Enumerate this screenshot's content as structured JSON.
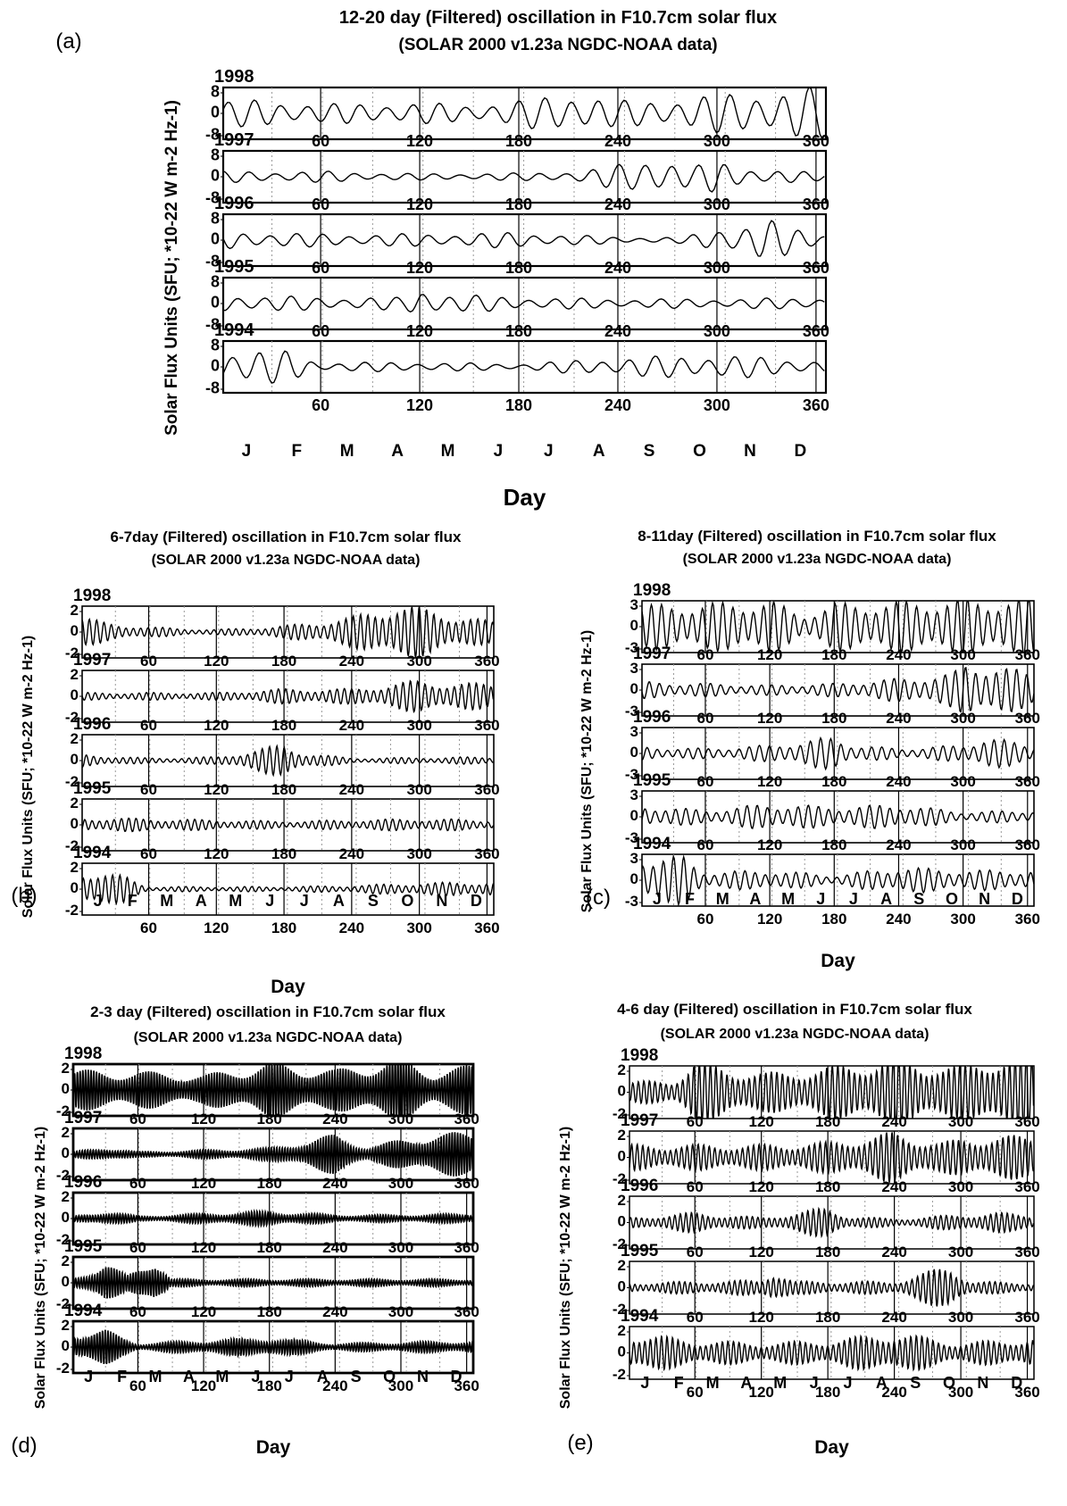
{
  "chart_data": [
    {
      "panel_letter": "(a)",
      "type": "line",
      "title": "12-20 day (Filtered) oscillation in F10.7cm solar flux",
      "subtitle": "(SOLAR 2000 v1.23a NGDC-NOAA data)",
      "ylabel": "Solar Flux Units (SFU; *10-22 W m-2 Hz-1)",
      "xlabel": "Day",
      "ylim": [
        -8,
        8
      ],
      "yticks": [
        "8",
        "0",
        "-8"
      ],
      "xlim": [
        1,
        366
      ],
      "xticks": [
        "60",
        "120",
        "180",
        "240",
        "300",
        "360"
      ],
      "months": [
        "J",
        "F",
        "M",
        "A",
        "M",
        "J",
        "J",
        "A",
        "S",
        "O",
        "N",
        "D"
      ],
      "series": [
        {
          "name": "1998",
          "period_days": 16,
          "envelope": [
            [
              1,
              4
            ],
            [
              30,
              4.5
            ],
            [
              60,
              3
            ],
            [
              100,
              3.5
            ],
            [
              150,
              3
            ],
            [
              180,
              4
            ],
            [
              210,
              7
            ],
            [
              240,
              4
            ],
            [
              280,
              5
            ],
            [
              320,
              7
            ],
            [
              366,
              8.5
            ]
          ]
        },
        {
          "name": "1997",
          "period_days": 16,
          "envelope": [
            [
              1,
              1.8
            ],
            [
              60,
              1.8
            ],
            [
              120,
              1
            ],
            [
              180,
              1.2
            ],
            [
              220,
              2
            ],
            [
              240,
              4
            ],
            [
              260,
              7
            ],
            [
              285,
              3
            ],
            [
              300,
              5.5
            ],
            [
              330,
              2
            ],
            [
              366,
              1.5
            ]
          ]
        },
        {
          "name": "1996",
          "period_days": 16,
          "envelope": [
            [
              1,
              3
            ],
            [
              60,
              2
            ],
            [
              120,
              2
            ],
            [
              180,
              2.5
            ],
            [
              240,
              1
            ],
            [
              280,
              1
            ],
            [
              310,
              5
            ],
            [
              330,
              7
            ],
            [
              345,
              4
            ],
            [
              366,
              2
            ]
          ]
        },
        {
          "name": "1995",
          "period_days": 16,
          "envelope": [
            [
              1,
              3
            ],
            [
              60,
              2
            ],
            [
              110,
              2
            ],
            [
              120,
              5
            ],
            [
              140,
              3
            ],
            [
              180,
              2
            ],
            [
              240,
              1.5
            ],
            [
              300,
              1.5
            ],
            [
              366,
              2
            ]
          ]
        },
        {
          "name": "1994",
          "period_days": 16,
          "envelope": [
            [
              1,
              6
            ],
            [
              40,
              5
            ],
            [
              60,
              1.5
            ],
            [
              120,
              1.5
            ],
            [
              180,
              1
            ],
            [
              240,
              3
            ],
            [
              300,
              4
            ],
            [
              330,
              3
            ],
            [
              366,
              2
            ]
          ]
        }
      ]
    },
    {
      "panel_letter": "(b)",
      "type": "line",
      "title": "6-7day (Filtered) oscillation in F10.7cm solar flux",
      "subtitle": "(SOLAR 2000 v1.23a NGDC-NOAA data)",
      "ylabel": "Solar Flux Units (SFU; *10-22 W m-2 Hz-1)",
      "xlabel": "Day",
      "ylim": [
        -2,
        2
      ],
      "yticks": [
        "2",
        "0",
        "-2"
      ],
      "xlim": [
        1,
        366
      ],
      "xticks": [
        "60",
        "120",
        "180",
        "240",
        "300",
        "360"
      ],
      "months": [
        "J",
        "F",
        "M",
        "A",
        "M",
        "J",
        "J",
        "A",
        "S",
        "O",
        "N",
        "D"
      ],
      "series": [
        {
          "name": "1998",
          "period_days": 6.5,
          "envelope": [
            [
              1,
              1.2
            ],
            [
              20,
              0.8
            ],
            [
              60,
              0.4
            ],
            [
              120,
              0.2
            ],
            [
              180,
              0.5
            ],
            [
              240,
              1.2
            ],
            [
              280,
              2.3
            ],
            [
              310,
              1.8
            ],
            [
              366,
              0.8
            ]
          ]
        },
        {
          "name": "1997",
          "period_days": 6.5,
          "envelope": [
            [
              1,
              0.3
            ],
            [
              120,
              0.3
            ],
            [
              180,
              0.6
            ],
            [
              240,
              0.6
            ],
            [
              300,
              1.3
            ],
            [
              330,
              1.1
            ],
            [
              366,
              1
            ]
          ]
        },
        {
          "name": "1996",
          "period_days": 6.5,
          "envelope": [
            [
              1,
              0.5
            ],
            [
              60,
              0.2
            ],
            [
              120,
              0.3
            ],
            [
              150,
              0.8
            ],
            [
              180,
              1.3
            ],
            [
              200,
              0.6
            ],
            [
              240,
              0.2
            ],
            [
              366,
              0.3
            ]
          ]
        },
        {
          "name": "1995",
          "period_days": 6.5,
          "envelope": [
            [
              1,
              0.6
            ],
            [
              120,
              0.4
            ],
            [
              180,
              0.3
            ],
            [
              240,
              0.4
            ],
            [
              300,
              0.5
            ],
            [
              366,
              0.4
            ]
          ]
        },
        {
          "name": "1994",
          "period_days": 6.5,
          "envelope": [
            [
              1,
              1.6
            ],
            [
              40,
              1
            ],
            [
              60,
              0.2
            ],
            [
              180,
              0.2
            ],
            [
              240,
              0.3
            ],
            [
              300,
              0.5
            ],
            [
              366,
              0.6
            ]
          ]
        }
      ]
    },
    {
      "panel_letter": "(c)",
      "type": "line",
      "title": "8-11day (Filtered) oscillation in F10.7cm solar flux",
      "subtitle": "(SOLAR 2000 v1.23a NGDC-NOAA data)",
      "ylabel": "Solar Flux Units (SFU; *10-22 W m-2 Hz-1)",
      "xlabel": "Day",
      "ylim": [
        -3,
        3
      ],
      "yticks": [
        "3",
        "0",
        "-3"
      ],
      "xlim": [
        1,
        366
      ],
      "xticks": [
        "60",
        "120",
        "180",
        "240",
        "300",
        "360"
      ],
      "months": [
        "J",
        "F",
        "M",
        "A",
        "M",
        "J",
        "J",
        "A",
        "S",
        "O",
        "N",
        "D"
      ],
      "series": [
        {
          "name": "1998",
          "period_days": 9.5,
          "envelope": [
            [
              1,
              2.6
            ],
            [
              60,
              2.8
            ],
            [
              120,
              3.2
            ],
            [
              150,
              1.5
            ],
            [
              180,
              2.8
            ],
            [
              240,
              3
            ],
            [
              300,
              3.3
            ],
            [
              366,
              3.3
            ]
          ]
        },
        {
          "name": "1997",
          "period_days": 9.5,
          "envelope": [
            [
              1,
              1
            ],
            [
              60,
              0.8
            ],
            [
              120,
              0.6
            ],
            [
              180,
              0.8
            ],
            [
              240,
              1.4
            ],
            [
              290,
              2
            ],
            [
              305,
              3.5
            ],
            [
              330,
              3
            ],
            [
              366,
              2
            ]
          ]
        },
        {
          "name": "1996",
          "period_days": 9.5,
          "envelope": [
            [
              1,
              0.8
            ],
            [
              60,
              0.6
            ],
            [
              120,
              1
            ],
            [
              180,
              2
            ],
            [
              200,
              1
            ],
            [
              240,
              0.6
            ],
            [
              300,
              1
            ],
            [
              320,
              2
            ],
            [
              366,
              1
            ]
          ]
        },
        {
          "name": "1995",
          "period_days": 9.5,
          "envelope": [
            [
              1,
              1.4
            ],
            [
              60,
              0.8
            ],
            [
              120,
              1.6
            ],
            [
              180,
              1.2
            ],
            [
              240,
              1.5
            ],
            [
              300,
              0.6
            ],
            [
              366,
              0.8
            ]
          ]
        },
        {
          "name": "1994",
          "period_days": 9.5,
          "envelope": [
            [
              1,
              3
            ],
            [
              40,
              2.8
            ],
            [
              60,
              1
            ],
            [
              120,
              1.2
            ],
            [
              180,
              0.6
            ],
            [
              240,
              1.6
            ],
            [
              300,
              1.2
            ],
            [
              366,
              1.2
            ]
          ]
        }
      ]
    },
    {
      "panel_letter": "(d)",
      "type": "line",
      "title": "2-3 day (Filtered) oscillation in F10.7cm solar flux",
      "subtitle": "(SOLAR 2000 v1.23a NGDC-NOAA data)",
      "ylabel": "Solar Flux Units (SFU; *10-22 W m-2 Hz-1)",
      "xlabel": "Day",
      "ylim": [
        -2,
        2
      ],
      "yticks": [
        "2",
        "0",
        "-2"
      ],
      "xlim": [
        1,
        366
      ],
      "xticks": [
        "60",
        "120",
        "180",
        "240",
        "300",
        "360"
      ],
      "months": [
        "J",
        "F",
        "M",
        "A",
        "M",
        "J",
        "J",
        "A",
        "S",
        "O",
        "N",
        "D"
      ],
      "series": [
        {
          "name": "1998",
          "period_days": 2.5,
          "envelope": [
            [
              1,
              1.6
            ],
            [
              60,
              1.5
            ],
            [
              120,
              1.2
            ],
            [
              180,
              2.2
            ],
            [
              240,
              1.6
            ],
            [
              300,
              2.6
            ],
            [
              330,
              1.5
            ],
            [
              366,
              2
            ]
          ]
        },
        {
          "name": "1997",
          "period_days": 2.5,
          "envelope": [
            [
              1,
              0.2
            ],
            [
              30,
              0.6
            ],
            [
              60,
              0.2
            ],
            [
              180,
              0.5
            ],
            [
              240,
              1.6
            ],
            [
              270,
              0.6
            ],
            [
              320,
              1.6
            ],
            [
              366,
              1.8
            ]
          ]
        },
        {
          "name": "1996",
          "period_days": 2.5,
          "envelope": [
            [
              1,
              0.2
            ],
            [
              30,
              0.6
            ],
            [
              60,
              0.2
            ],
            [
              180,
              0.6
            ],
            [
              240,
              0.3
            ],
            [
              300,
              0.3
            ],
            [
              366,
              0.4
            ]
          ]
        },
        {
          "name": "1995",
          "period_days": 2.5,
          "envelope": [
            [
              1,
              0.4
            ],
            [
              30,
              1.6
            ],
            [
              50,
              0.6
            ],
            [
              75,
              2.2
            ],
            [
              90,
              0.3
            ],
            [
              180,
              0.3
            ],
            [
              300,
              0.3
            ],
            [
              366,
              0.3
            ]
          ]
        },
        {
          "name": "1994",
          "period_days": 2.5,
          "envelope": [
            [
              1,
              1.2
            ],
            [
              30,
              1.4
            ],
            [
              60,
              0.3
            ],
            [
              180,
              0.8
            ],
            [
              240,
              0.3
            ],
            [
              300,
              0.4
            ],
            [
              366,
              0.5
            ]
          ]
        }
      ]
    },
    {
      "panel_letter": "(e)",
      "type": "line",
      "title": "4-6 day (Filtered) oscillation in F10.7cm solar flux",
      "subtitle": "(SOLAR 2000 v1.23a NGDC-NOAA data)",
      "ylabel": "Solar Flux Units (SFU; *10-22 W m-2 Hz-1)",
      "xlabel": "Day",
      "ylim": [
        -2,
        2
      ],
      "yticks": [
        "2",
        "0",
        "-2"
      ],
      "xlim": [
        1,
        366
      ],
      "xticks": [
        "60",
        "120",
        "180",
        "240",
        "300",
        "360"
      ],
      "months": [
        "J",
        "F",
        "M",
        "A",
        "M",
        "J",
        "J",
        "A",
        "S",
        "O",
        "N",
        "D"
      ],
      "series": [
        {
          "name": "1998",
          "period_days": 5,
          "envelope": [
            [
              1,
              0.8
            ],
            [
              40,
              1
            ],
            [
              60,
              2.5
            ],
            [
              120,
              1.5
            ],
            [
              180,
              2
            ],
            [
              240,
              2.8
            ],
            [
              300,
              2
            ],
            [
              330,
              3
            ],
            [
              366,
              3
            ]
          ]
        },
        {
          "name": "1997",
          "period_days": 5,
          "envelope": [
            [
              1,
              1
            ],
            [
              60,
              1
            ],
            [
              120,
              1
            ],
            [
              180,
              1.2
            ],
            [
              240,
              2
            ],
            [
              280,
              1.2
            ],
            [
              330,
              1.8
            ],
            [
              366,
              1.6
            ]
          ]
        },
        {
          "name": "1996",
          "period_days": 5,
          "envelope": [
            [
              1,
              0.4
            ],
            [
              60,
              0.8
            ],
            [
              120,
              0.4
            ],
            [
              180,
              1.2
            ],
            [
              200,
              0.5
            ],
            [
              240,
              0.3
            ],
            [
              330,
              0.8
            ],
            [
              366,
              0.6
            ]
          ]
        },
        {
          "name": "1995",
          "period_days": 5,
          "envelope": [
            [
              1,
              0.4
            ],
            [
              120,
              0.6
            ],
            [
              130,
              1.5
            ],
            [
              150,
              0.5
            ],
            [
              240,
              0.5
            ],
            [
              290,
              1.8
            ],
            [
              310,
              0.5
            ],
            [
              366,
              0.4
            ]
          ]
        },
        {
          "name": "1994",
          "period_days": 5,
          "envelope": [
            [
              1,
              1.6
            ],
            [
              60,
              1
            ],
            [
              120,
              0.8
            ],
            [
              180,
              1
            ],
            [
              240,
              1.6
            ],
            [
              300,
              0.8
            ],
            [
              366,
              1.2
            ]
          ]
        }
      ]
    }
  ]
}
